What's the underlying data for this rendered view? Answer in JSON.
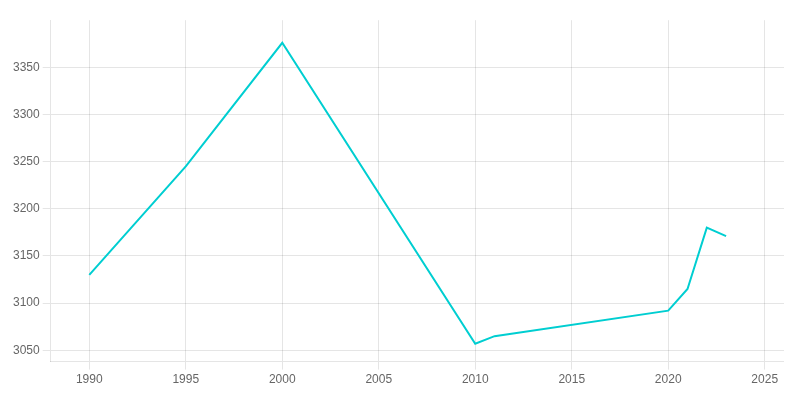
{
  "chart_data": {
    "type": "line",
    "x": [
      1990,
      1995,
      2000,
      2010,
      2011,
      2020,
      2021,
      2022,
      2023
    ],
    "values": [
      3130,
      3245,
      3376,
      3057,
      3065,
      3092,
      3115,
      3180,
      3171
    ],
    "color": "#00CED1",
    "xlim": [
      1988,
      2026
    ],
    "xticks": [
      1990,
      1995,
      2000,
      2005,
      2010,
      2015,
      2020,
      2025
    ],
    "ylim": [
      3038,
      3400
    ],
    "yticks": [
      3050,
      3100,
      3150,
      3200,
      3250,
      3300,
      3350
    ],
    "grid": true
  }
}
